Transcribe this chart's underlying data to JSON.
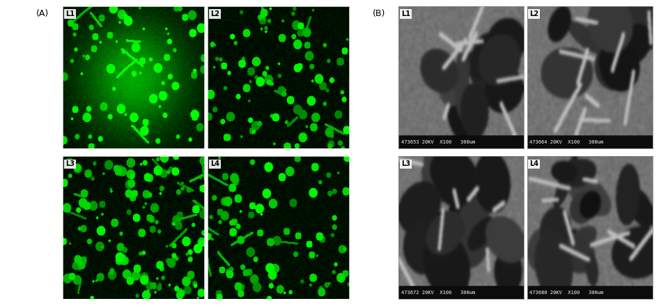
{
  "fig_width": 9.46,
  "fig_height": 4.42,
  "dpi": 100,
  "background_color": "#ffffff",
  "panel_A_label": "(A)",
  "panel_B_label": "(B)",
  "panel_A_sublabels": [
    "L1",
    "L2",
    "L3",
    "L4"
  ],
  "panel_B_sublabels": [
    "L1",
    "L2",
    "L3",
    "L4"
  ],
  "panel_B_footers": [
    "473653 20KV  X100   300um",
    "473664 20KV  X100   300um",
    "473672 20KV  X100   300um",
    "473680 20KV  X100   300um"
  ],
  "label_box_color": "#ffffff",
  "label_text_color": "#000000",
  "sublabel_fontsize": 7,
  "panel_label_fontsize": 9,
  "footer_fontsize": 5,
  "green_bg_color": [
    0,
    30,
    0
  ],
  "green_bright_color": [
    0,
    220,
    0
  ],
  "sem_bg_color": 80,
  "sem_bright_color": 200
}
